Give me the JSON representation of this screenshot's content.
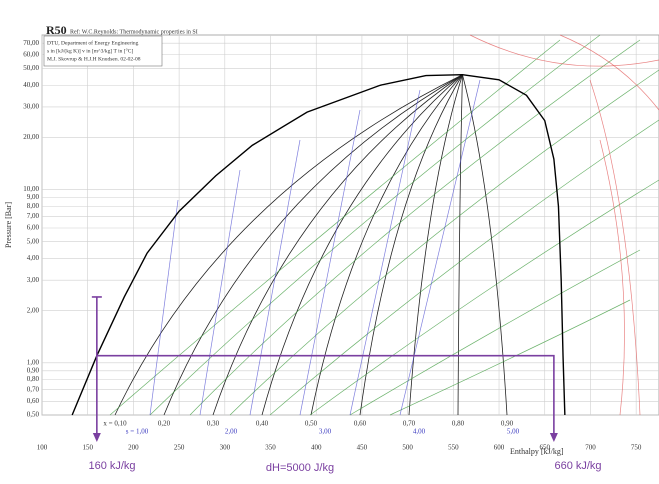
{
  "chart_data": {
    "type": "line",
    "title": "R50",
    "subtitle": "Ref: W.C.Reynolds: Thermodynamic properties in SI",
    "info_box": [
      "DTU, Department of Energy Engineering",
      "s in [kJ/(kg K)]  v in [m^3/kg]  T in [°C]",
      "M.J. Skovrup & H.J.H Knudsen. 02-02-08"
    ],
    "x_label": "Enthalpy [kJ/kg]",
    "y_label": "Pressure [Bar]",
    "xlim": [
      100,
      775
    ],
    "ylim": [
      0.5,
      78
    ],
    "log_y": true,
    "grid": true,
    "xticks": [
      100,
      150,
      200,
      250,
      300,
      350,
      400,
      450,
      500,
      550,
      600,
      650,
      700,
      750
    ],
    "yticks": [
      {
        "value": 0.5,
        "label": "0,50"
      },
      {
        "value": 0.6,
        "label": "0,60"
      },
      {
        "value": 0.7,
        "label": "0,70"
      },
      {
        "value": 0.8,
        "label": "0,80"
      },
      {
        "value": 0.9,
        "label": "0,90"
      },
      {
        "value": 1,
        "label": "1,00"
      },
      {
        "value": 2,
        "label": "2,00"
      },
      {
        "value": 3,
        "label": "3,00"
      },
      {
        "value": 4,
        "label": "4,00"
      },
      {
        "value": 5,
        "label": "5,00"
      },
      {
        "value": 6,
        "label": "6,00"
      },
      {
        "value": 7,
        "label": "7,00"
      },
      {
        "value": 8,
        "label": "8,00"
      },
      {
        "value": 9,
        "label": "9,00"
      },
      {
        "value": 10,
        "label": "10,00"
      },
      {
        "value": 20,
        "label": "20,00"
      },
      {
        "value": 30,
        "label": "30,00"
      },
      {
        "value": 40,
        "label": "40,00"
      },
      {
        "value": 50,
        "label": "50,00"
      },
      {
        "value": 60,
        "label": "60,00"
      },
      {
        "value": 70,
        "label": "70,00"
      }
    ],
    "series": [
      {
        "color": "#000000",
        "x": [
          133,
          160,
          190,
          215,
          250,
          290,
          330,
          390,
          470,
          520,
          560,
          600,
          630,
          650,
          660,
          665,
          668,
          670,
          672
        ],
        "values": [
          0.5,
          1.1,
          2.4,
          4.3,
          7.5,
          12,
          18,
          28,
          40,
          45.5,
          46,
          43,
          35,
          25,
          15,
          8,
          3,
          1.1,
          0.5
        ]
      },
      {
        "color": "#7a3fa0",
        "x": [
          160,
          160,
          660,
          660
        ],
        "values": [
          2.4,
          1.1,
          1.1,
          0.5
        ]
      },
      {
        "color": "#7a3fa0",
        "x": [
          160,
          160
        ],
        "values": [
          1.1,
          0.5
        ]
      }
    ],
    "quality_labels": [
      {
        "value": 0.1,
        "label": "x = 0,10"
      },
      {
        "value": 0.2,
        "label": "0,20"
      },
      {
        "value": 0.3,
        "label": "0,30"
      },
      {
        "value": 0.4,
        "label": "0,40"
      },
      {
        "value": 0.5,
        "label": "0,50"
      },
      {
        "value": 0.6,
        "label": "0,60"
      },
      {
        "value": 0.7,
        "label": "0,70"
      },
      {
        "value": 0.8,
        "label": "0,80"
      },
      {
        "value": 0.9,
        "label": "0,90"
      }
    ],
    "entropy_labels": [
      {
        "value": 1,
        "label": "s = 1,00"
      },
      {
        "value": 2,
        "label": "2,00"
      },
      {
        "value": 3,
        "label": "3,00"
      },
      {
        "value": 4,
        "label": "4,00"
      },
      {
        "value": 5,
        "label": "5,00"
      }
    ],
    "annotations": [
      "160 kJ/kg",
      "dH=5000 J/kg",
      "660 kJ/kg"
    ]
  }
}
